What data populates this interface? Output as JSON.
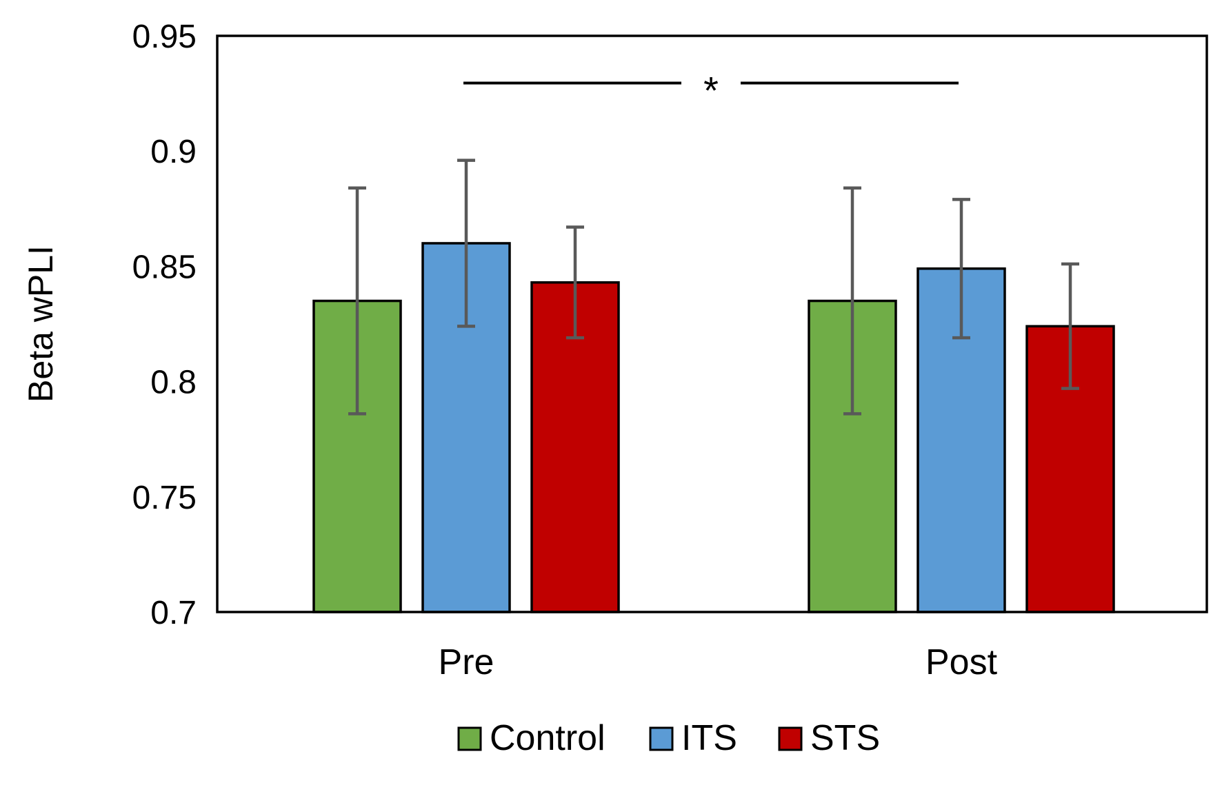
{
  "chart_data": {
    "type": "bar",
    "title": "",
    "xlabel": "",
    "ylabel": "Beta wPLI",
    "ylim": [
      0.7,
      0.95
    ],
    "yticks": [
      0.7,
      0.75,
      0.8,
      0.85,
      0.9,
      0.95
    ],
    "ytick_labels": [
      "0.7",
      "0.75",
      "0.8",
      "0.85",
      "0.9",
      "0.95"
    ],
    "categories": [
      "Pre",
      "Post"
    ],
    "series": [
      {
        "name": "Control",
        "color": "#70AD47",
        "values": [
          0.835,
          0.835
        ],
        "errors": [
          0.049,
          0.049
        ]
      },
      {
        "name": "ITS",
        "color": "#5B9BD5",
        "values": [
          0.86,
          0.849
        ],
        "errors": [
          0.036,
          0.03
        ]
      },
      {
        "name": "STS",
        "color": "#C00000",
        "values": [
          0.843,
          0.824
        ],
        "errors": [
          0.024,
          0.027
        ]
      }
    ],
    "grid": false,
    "legend_position": "bottom",
    "annotations": [
      {
        "text": "*",
        "y": 0.9295,
        "from_category": "Pre",
        "to_category": "Post"
      }
    ]
  }
}
